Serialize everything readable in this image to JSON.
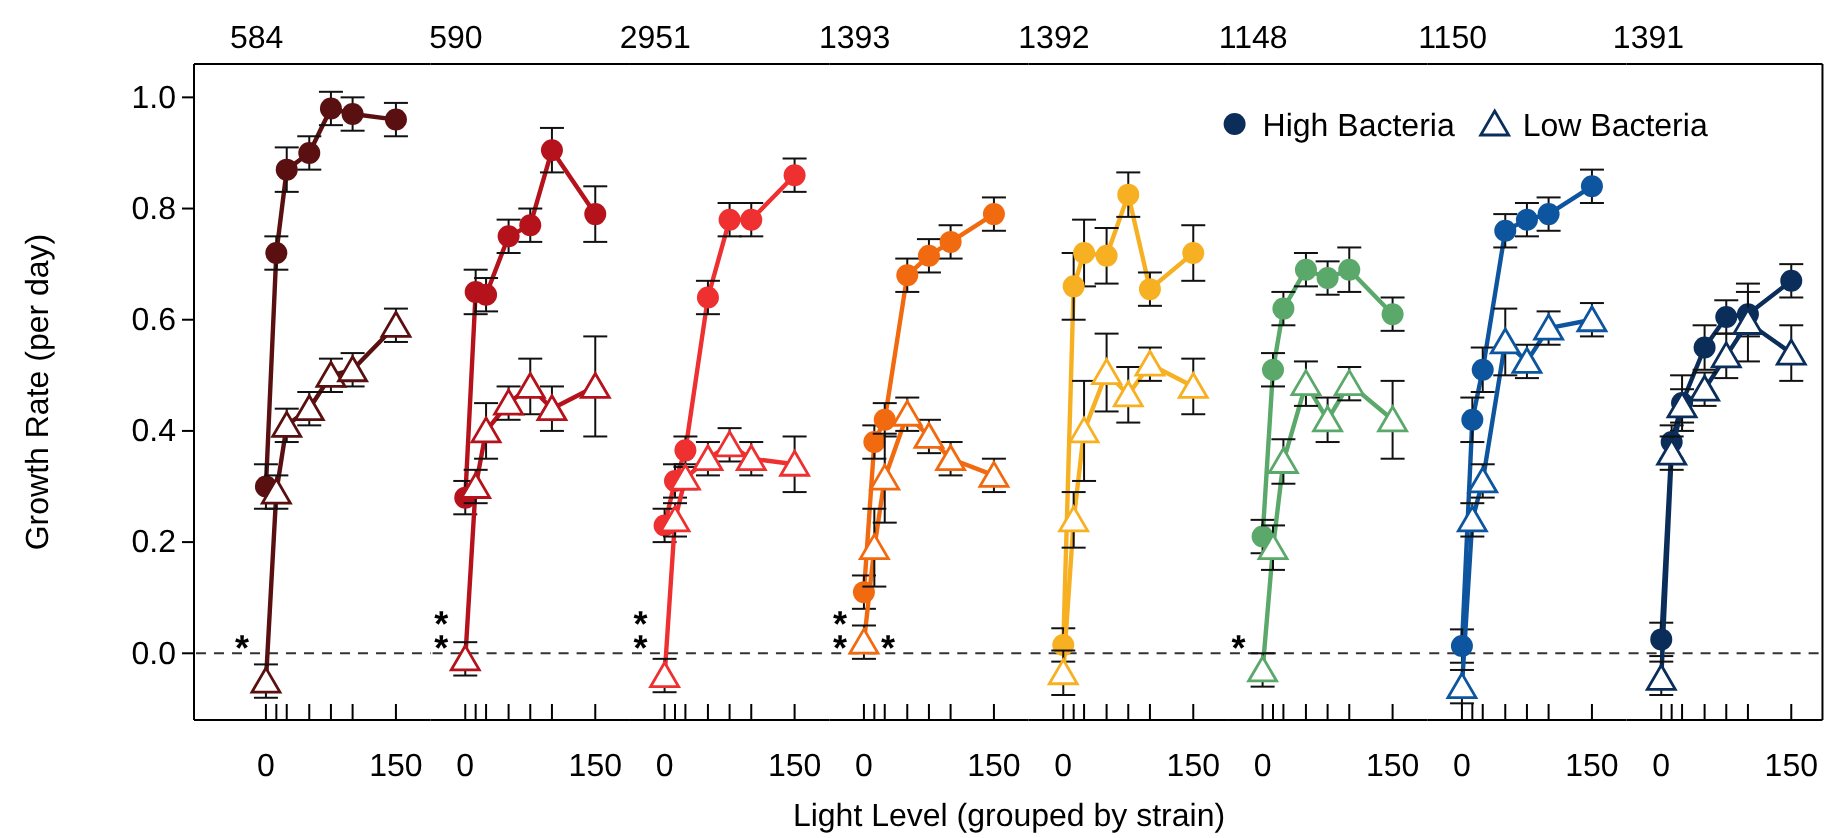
{
  "chart_data": [
    {
      "type": "line",
      "title": "584",
      "ylabel": "Growth Rate (per day)",
      "x": [
        0,
        12,
        24,
        50,
        75,
        100,
        150
      ],
      "xlim": [
        -83,
        190
      ],
      "xticks": [
        {
          "value": 0,
          "label": "0"
        },
        {
          "value": 12,
          "label": null
        },
        {
          "value": 24,
          "label": null
        },
        {
          "value": 50,
          "label": null
        },
        {
          "value": 75,
          "label": null
        },
        {
          "value": 100,
          "label": null
        },
        {
          "value": 150,
          "label": "150"
        }
      ],
      "ylim": [
        -0.12,
        1.06
      ],
      "yticks": [
        {
          "value": 0,
          "label": "0.0"
        },
        {
          "value": 0.2,
          "label": "0.2"
        },
        {
          "value": 0.4,
          "label": "0.4"
        },
        {
          "value": 0.6,
          "label": "0.6"
        },
        {
          "value": 0.8,
          "label": "0.8"
        },
        {
          "value": 1,
          "label": "1.0"
        }
      ],
      "ref_lines": [
        {
          "axis": "y",
          "value": 0,
          "line_style": "dashed"
        }
      ],
      "annotations": [
        "*"
      ],
      "series": [
        {
          "color": "#5a1010",
          "marker": "circle",
          "values": [
            0.3,
            0.72,
            0.87,
            0.9,
            0.98,
            0.97,
            0.96
          ],
          "errors": [
            0.04,
            0.03,
            0.04,
            0.03,
            0.03,
            0.03,
            0.03
          ]
        },
        {
          "color": "#5a1010",
          "marker": "triangle",
          "values": [
            -0.05,
            0.29,
            0.41,
            0.44,
            0.5,
            0.51,
            0.59
          ],
          "errors": [
            0.03,
            0.03,
            0.03,
            0.03,
            0.03,
            0.03,
            0.03
          ]
        }
      ]
    },
    {
      "type": "line",
      "title": "590",
      "x": [
        0,
        12,
        24,
        50,
        75,
        100,
        150
      ],
      "xlim": [
        -40,
        190
      ],
      "xticks": [
        {
          "value": 0,
          "label": "0"
        },
        {
          "value": 12,
          "label": null
        },
        {
          "value": 24,
          "label": null
        },
        {
          "value": 50,
          "label": null
        },
        {
          "value": 75,
          "label": null
        },
        {
          "value": 100,
          "label": null
        },
        {
          "value": 150,
          "label": "150"
        }
      ],
      "ylim": [
        -0.12,
        1.06
      ],
      "tick_labels": "x",
      "ref_lines": [
        {
          "axis": "y",
          "value": 0,
          "line_style": "dashed"
        }
      ],
      "annotations": [
        "*",
        "*"
      ],
      "series": [
        {
          "color": "#b5121b",
          "marker": "circle",
          "values": [
            0.28,
            0.65,
            0.645,
            0.75,
            0.77,
            0.905,
            0.79
          ],
          "errors": [
            0.03,
            0.04,
            0.03,
            0.03,
            0.03,
            0.04,
            0.05
          ]
        },
        {
          "color": "#b5121b",
          "marker": "triangle",
          "values": [
            -0.01,
            0.3,
            0.4,
            0.45,
            0.48,
            0.44,
            0.48
          ],
          "errors": [
            0.03,
            0.03,
            0.05,
            0.03,
            0.05,
            0.04,
            0.09
          ]
        }
      ]
    },
    {
      "type": "line",
      "title": "2951",
      "x": [
        0,
        12,
        24,
        50,
        75,
        100,
        150
      ],
      "xlim": [
        -40,
        190
      ],
      "xticks": [
        {
          "value": 0,
          "label": "0"
        },
        {
          "value": 12,
          "label": null
        },
        {
          "value": 24,
          "label": null
        },
        {
          "value": 50,
          "label": null
        },
        {
          "value": 75,
          "label": null
        },
        {
          "value": 100,
          "label": null
        },
        {
          "value": 150,
          "label": "150"
        }
      ],
      "ylim": [
        -0.12,
        1.06
      ],
      "tick_labels": "x",
      "ref_lines": [
        {
          "axis": "y",
          "value": 0,
          "line_style": "dashed"
        }
      ],
      "annotations": [
        "*",
        "*"
      ],
      "series": [
        {
          "color": "#ee3030",
          "marker": "circle",
          "values": [
            0.23,
            0.31,
            0.365,
            0.64,
            0.78,
            0.78,
            0.86
          ],
          "errors": [
            0.03,
            0.03,
            0.025,
            0.03,
            0.03,
            0.03,
            0.03
          ]
        },
        {
          "color": "#ee3030",
          "marker": "triangle",
          "values": [
            -0.04,
            0.24,
            0.315,
            0.35,
            0.375,
            0.35,
            0.34
          ],
          "errors": [
            0.03,
            0.03,
            0.02,
            0.03,
            0.03,
            0.03,
            0.05
          ]
        }
      ]
    },
    {
      "type": "line",
      "title": "1393",
      "x": [
        0,
        12,
        24,
        50,
        75,
        100,
        150
      ],
      "xlim": [
        -40,
        190
      ],
      "xticks": [
        {
          "value": 0,
          "label": "0"
        },
        {
          "value": 12,
          "label": null
        },
        {
          "value": 24,
          "label": null
        },
        {
          "value": 50,
          "label": null
        },
        {
          "value": 75,
          "label": null
        },
        {
          "value": 100,
          "label": null
        },
        {
          "value": 150,
          "label": "150"
        }
      ],
      "ylim": [
        -0.12,
        1.06
      ],
      "tick_labels": "x",
      "ref_lines": [
        {
          "axis": "y",
          "value": 0,
          "line_style": "dashed"
        }
      ],
      "annotations": [
        "*",
        "*",
        "*"
      ],
      "series": [
        {
          "color": "#f26a10",
          "marker": "circle",
          "values": [
            0.11,
            0.38,
            0.42,
            0.68,
            0.715,
            0.74,
            0.79
          ],
          "errors": [
            0.03,
            0.03,
            0.03,
            0.03,
            0.03,
            0.03,
            0.03
          ]
        },
        {
          "color": "#f26a10",
          "marker": "triangle",
          "values": [
            0.02,
            0.19,
            0.315,
            0.43,
            0.39,
            0.35,
            0.32
          ],
          "errors": [
            0.03,
            0.07,
            0.08,
            0.03,
            0.03,
            0.03,
            0.03
          ]
        }
      ]
    },
    {
      "type": "line",
      "title": "1392",
      "x": [
        0,
        12,
        24,
        50,
        75,
        100,
        150
      ],
      "xlim": [
        -40,
        190
      ],
      "xticks": [
        {
          "value": 0,
          "label": "0"
        },
        {
          "value": 12,
          "label": null
        },
        {
          "value": 24,
          "label": null
        },
        {
          "value": 50,
          "label": null
        },
        {
          "value": 75,
          "label": null
        },
        {
          "value": 100,
          "label": null
        },
        {
          "value": 150,
          "label": "150"
        }
      ],
      "ylim": [
        -0.12,
        1.06
      ],
      "tick_labels": "x",
      "ref_lines": [
        {
          "axis": "y",
          "value": 0,
          "line_style": "dashed"
        }
      ],
      "series": [
        {
          "color": "#f7b022",
          "marker": "circle",
          "values": [
            0.015,
            0.66,
            0.72,
            0.715,
            0.825,
            0.655,
            0.72
          ],
          "errors": [
            0.03,
            0.06,
            0.06,
            0.05,
            0.04,
            0.03,
            0.05
          ]
        },
        {
          "color": "#f7b022",
          "marker": "triangle",
          "values": [
            -0.035,
            0.24,
            0.4,
            0.505,
            0.465,
            0.52,
            0.48
          ],
          "errors": [
            0.04,
            0.05,
            0.09,
            0.07,
            0.05,
            0.03,
            0.05
          ]
        }
      ]
    },
    {
      "type": "line",
      "title": "1148",
      "x": [
        0,
        12,
        24,
        50,
        75,
        100,
        150
      ],
      "xlim": [
        -40,
        190
      ],
      "xticks": [
        {
          "value": 0,
          "label": "0"
        },
        {
          "value": 12,
          "label": null
        },
        {
          "value": 24,
          "label": null
        },
        {
          "value": 50,
          "label": null
        },
        {
          "value": 75,
          "label": null
        },
        {
          "value": 100,
          "label": null
        },
        {
          "value": 150,
          "label": "150"
        }
      ],
      "ylim": [
        -0.12,
        1.06
      ],
      "tick_labels": "x",
      "ref_lines": [
        {
          "axis": "y",
          "value": 0,
          "line_style": "dashed"
        }
      ],
      "annotations": [
        "*"
      ],
      "series": [
        {
          "color": "#5aa86a",
          "marker": "circle",
          "values": [
            0.21,
            0.51,
            0.62,
            0.69,
            0.675,
            0.69,
            0.61
          ],
          "errors": [
            0.03,
            0.03,
            0.03,
            0.03,
            0.03,
            0.04,
            0.03
          ]
        },
        {
          "color": "#5aa86a",
          "marker": "triangle",
          "values": [
            -0.03,
            0.19,
            0.345,
            0.485,
            0.42,
            0.485,
            0.42
          ],
          "errors": [
            0.03,
            0.04,
            0.04,
            0.04,
            0.04,
            0.03,
            0.07
          ]
        }
      ]
    },
    {
      "type": "line",
      "title": "1150",
      "x": [
        0,
        12,
        24,
        50,
        75,
        100,
        150
      ],
      "xlim": [
        -40,
        190
      ],
      "xticks": [
        {
          "value": 0,
          "label": "0"
        },
        {
          "value": 12,
          "label": null
        },
        {
          "value": 24,
          "label": null
        },
        {
          "value": 50,
          "label": null
        },
        {
          "value": 75,
          "label": null
        },
        {
          "value": 100,
          "label": null
        },
        {
          "value": 150,
          "label": "150"
        }
      ],
      "ylim": [
        -0.12,
        1.06
      ],
      "tick_labels": "x",
      "ref_lines": [
        {
          "axis": "y",
          "value": 0,
          "line_style": "dashed"
        }
      ],
      "series": [
        {
          "color": "#0d559e",
          "marker": "circle",
          "values": [
            0.013,
            0.42,
            0.51,
            0.76,
            0.78,
            0.79,
            0.84
          ],
          "errors": [
            0.03,
            0.04,
            0.04,
            0.03,
            0.03,
            0.03,
            0.03
          ]
        },
        {
          "color": "#0d559e",
          "marker": "triangle",
          "values": [
            -0.06,
            0.24,
            0.31,
            0.56,
            0.525,
            0.585,
            0.6
          ],
          "errors": [
            0.03,
            0.03,
            0.03,
            0.06,
            0.03,
            0.03,
            0.03
          ]
        }
      ]
    },
    {
      "type": "line",
      "title": "1391",
      "x": [
        0,
        12,
        24,
        50,
        75,
        100,
        150
      ],
      "xlim": [
        -40,
        186
      ],
      "xticks": [
        {
          "value": 0,
          "label": "0"
        },
        {
          "value": 12,
          "label": null
        },
        {
          "value": 24,
          "label": null
        },
        {
          "value": 50,
          "label": null
        },
        {
          "value": 75,
          "label": null
        },
        {
          "value": 100,
          "label": null
        },
        {
          "value": 150,
          "label": "150"
        }
      ],
      "ylim": [
        -0.12,
        1.06
      ],
      "tick_labels": "x",
      "ref_lines": [
        {
          "axis": "y",
          "value": 0,
          "line_style": "dashed"
        }
      ],
      "legend": "top left",
      "series": [
        {
          "name": "High Bacteria",
          "color": "#0b2d5a",
          "marker": "circle",
          "values": [
            0.025,
            0.38,
            0.45,
            0.55,
            0.605,
            0.61,
            0.67
          ],
          "errors": [
            0.03,
            0.03,
            0.05,
            0.04,
            0.03,
            0.04,
            0.03
          ]
        },
        {
          "name": "Low Bacteria",
          "color": "#0b2d5a",
          "marker": "triangle",
          "values": [
            -0.045,
            0.36,
            0.445,
            0.475,
            0.535,
            0.595,
            0.54
          ],
          "errors": [
            0.03,
            0.03,
            0.03,
            0.03,
            0.04,
            0.07,
            0.05
          ]
        }
      ]
    },
    {
      "type": "other",
      "xlabel": "Light Level (grouped by strain)"
    }
  ]
}
